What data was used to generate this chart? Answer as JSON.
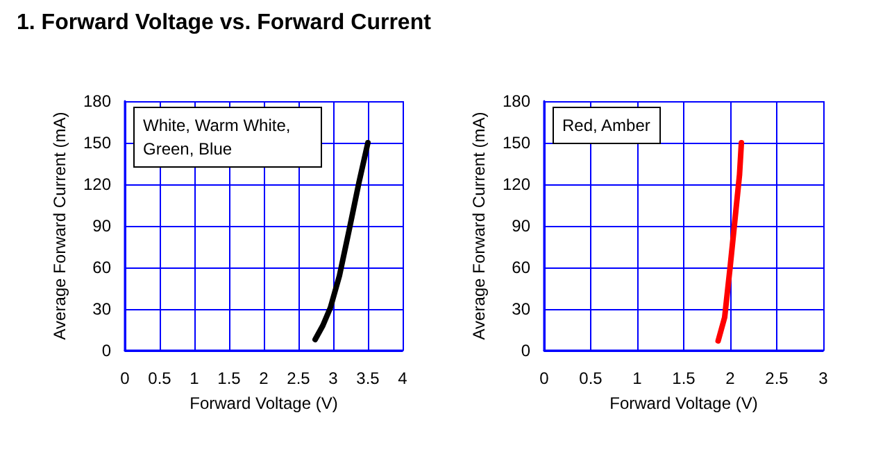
{
  "chart_data": [
    {
      "type": "line",
      "title": "1. Forward Voltage vs. Forward Current",
      "xlabel": "Forward Voltage (V)",
      "ylabel": "Average Forward Current (mA)",
      "annotations": [
        "White, Warm White, Green, Blue"
      ],
      "series": [
        {
          "color": "#000000",
          "x": [
            2.74,
            2.85,
            2.96,
            3.09,
            3.23,
            3.37,
            3.5
          ],
          "values": [
            8,
            18,
            31,
            54,
            87,
            121,
            150
          ]
        }
      ],
      "xlim": [
        0,
        4
      ],
      "xticks": [
        0,
        0.5,
        1,
        1.5,
        2,
        2.5,
        3,
        3.5,
        4
      ],
      "ylim": [
        0,
        180
      ],
      "yticks": [
        0,
        30,
        60,
        90,
        120,
        150,
        180
      ],
      "grid": true,
      "marker": "none",
      "line_style": "solid"
    },
    {
      "type": "line",
      "xlabel": "Forward Voltage (V)",
      "ylabel": "Average Forward Current (mA)",
      "annotations": [
        "Red, Amber"
      ],
      "series": [
        {
          "color": "#ff0000",
          "x": [
            1.87,
            1.94,
            2.0,
            2.05,
            2.1,
            2.12
          ],
          "values": [
            7,
            24,
            61,
            94,
            127,
            150
          ]
        }
      ],
      "xlim": [
        0,
        3
      ],
      "xticks": [
        0,
        0.5,
        1,
        1.5,
        2,
        2.5,
        3
      ],
      "ylim": [
        0,
        180
      ],
      "yticks": [
        0,
        30,
        60,
        90,
        120,
        150,
        180
      ],
      "grid": true,
      "marker": "none",
      "line_style": "solid"
    }
  ]
}
